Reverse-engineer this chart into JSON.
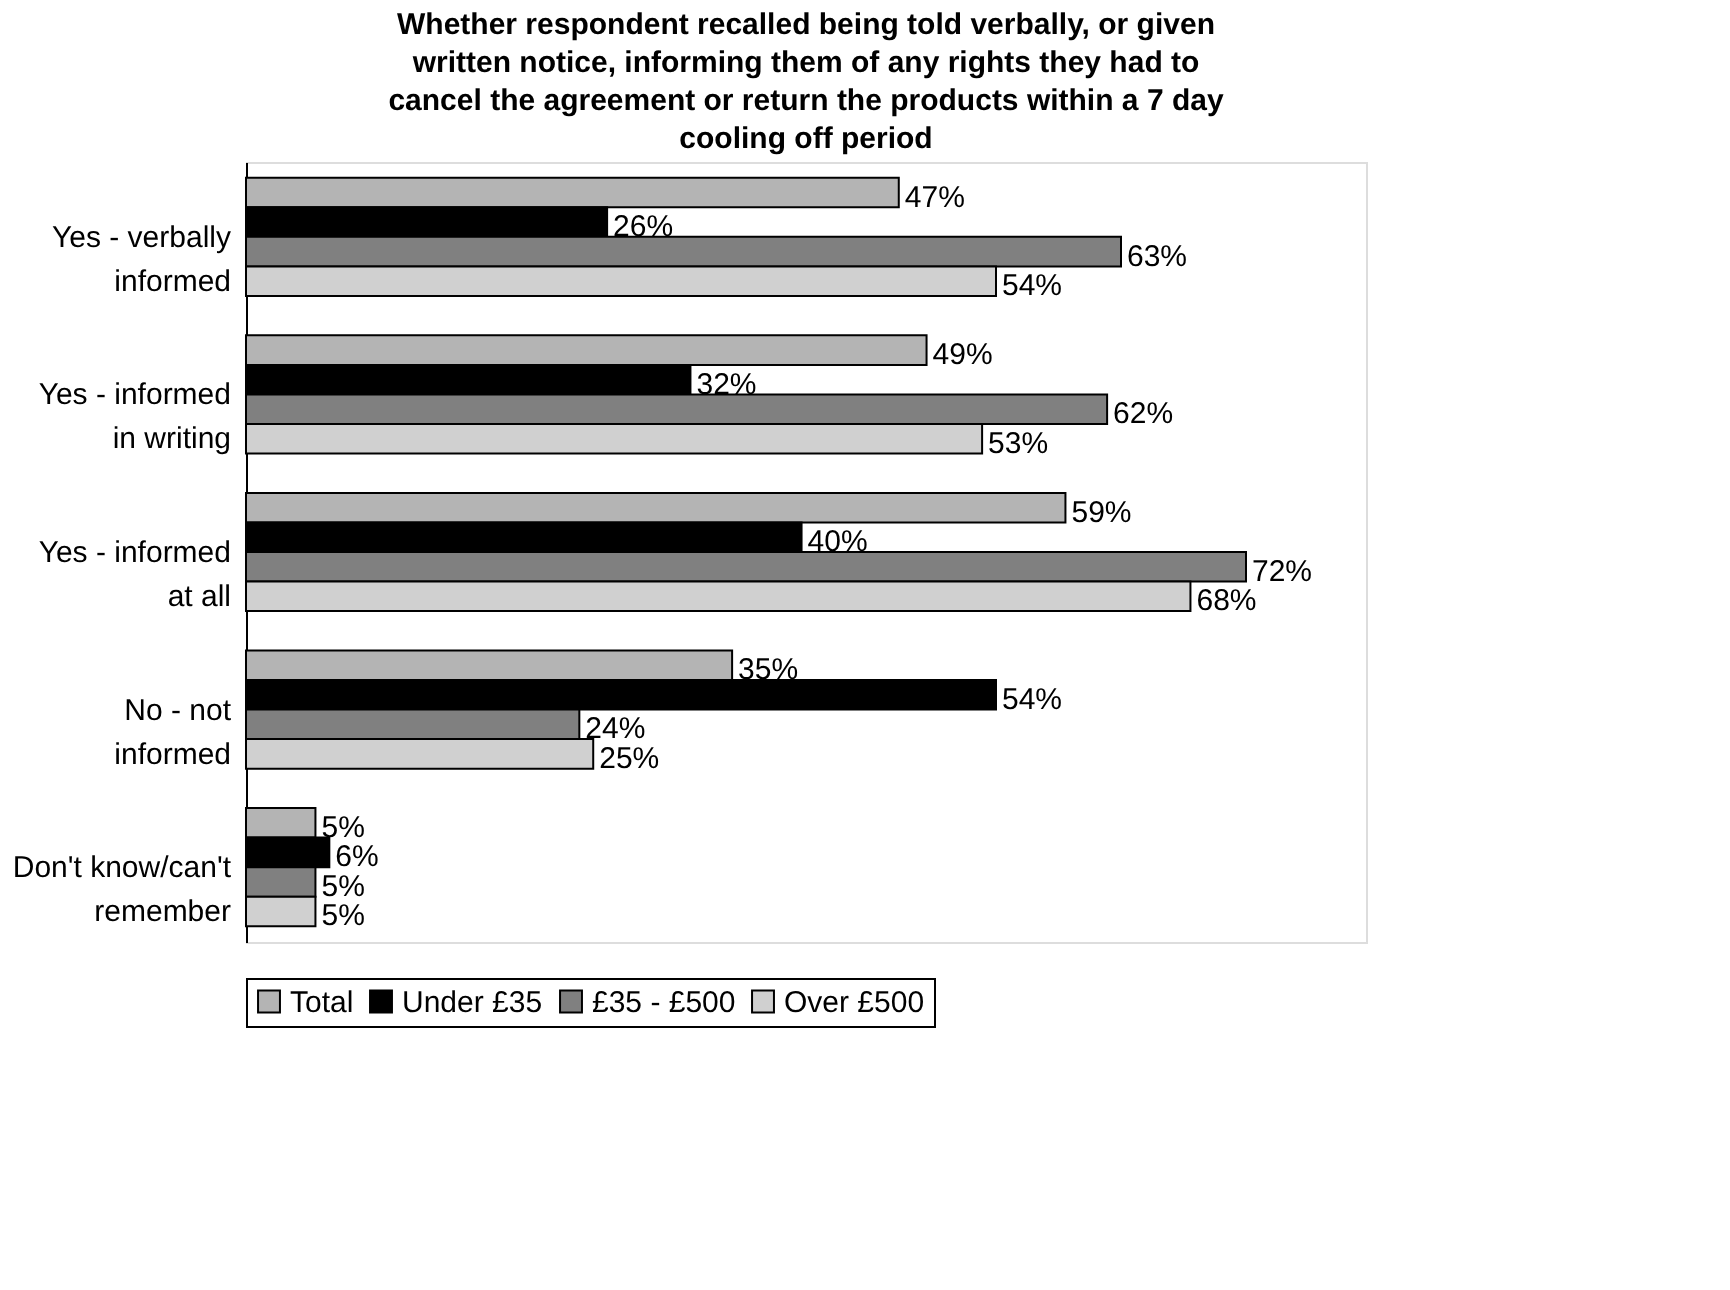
{
  "chart_data": {
    "type": "bar",
    "orientation": "horizontal",
    "title": "Whether respondent recalled being told verbally, or given written notice, informing them of any rights they had to cancel the agreement or return the products within a 7 day cooling off period",
    "categories": [
      "Yes - verbally informed",
      "Yes - informed in writing",
      "Yes - informed at all",
      "No - not informed",
      "Don't know/can't remember"
    ],
    "series": [
      {
        "name": "Total",
        "color": "#b4b4b4",
        "values": [
          47,
          49,
          59,
          35,
          5
        ],
        "value_labels": [
          "47%",
          "49%",
          "59%",
          "35%",
          "5%"
        ]
      },
      {
        "name": "Under £35",
        "color": "#000000",
        "values": [
          26,
          32,
          40,
          54,
          6
        ],
        "value_labels": [
          "26%",
          "32%",
          "40%",
          "54%",
          "6%"
        ]
      },
      {
        "name": "£35 - £500",
        "color": "#808080",
        "values": [
          63,
          62,
          72,
          24,
          5
        ],
        "value_labels": [
          "63%",
          "62%",
          "72%",
          "24%",
          "5%"
        ]
      },
      {
        "name": "Over £500",
        "color": "#d0d0d0",
        "values": [
          54,
          53,
          68,
          25,
          5
        ],
        "value_labels": [
          "54%",
          "53%",
          "68%",
          "25%",
          "5%"
        ]
      }
    ],
    "legend": "bottom"
  }
}
